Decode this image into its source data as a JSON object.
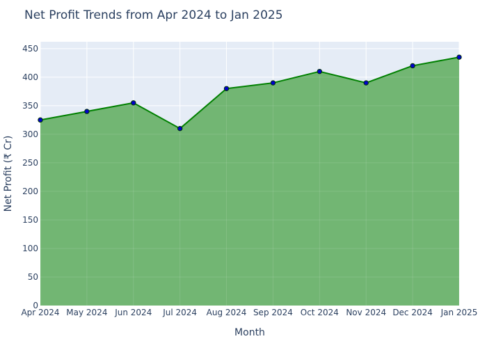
{
  "chart_data": {
    "type": "area",
    "title": "Net Profit Trends from Apr 2024 to Jan 2025",
    "xlabel": "Month",
    "ylabel": "Net Profit (₹ Cr)",
    "categories": [
      "Apr 2024",
      "May 2024",
      "Jun 2024",
      "Jul 2024",
      "Aug 2024",
      "Sep 2024",
      "Oct 2024",
      "Nov 2024",
      "Dec 2024",
      "Jan 2025"
    ],
    "values": [
      325,
      340,
      355,
      310,
      380,
      390,
      410,
      390,
      420,
      435
    ],
    "ylim": [
      0,
      462
    ],
    "yticks": [
      0,
      50,
      100,
      150,
      200,
      250,
      300,
      350,
      400,
      450
    ],
    "grid": true,
    "legend": "none",
    "colors": {
      "plot_background": "#e5ecf6",
      "grid": "#ffffff",
      "fill": "#72b673",
      "line": "#008000",
      "marker_fill": "#0000cd",
      "marker_edge": "#003300",
      "text": "#2a3f5f"
    }
  }
}
